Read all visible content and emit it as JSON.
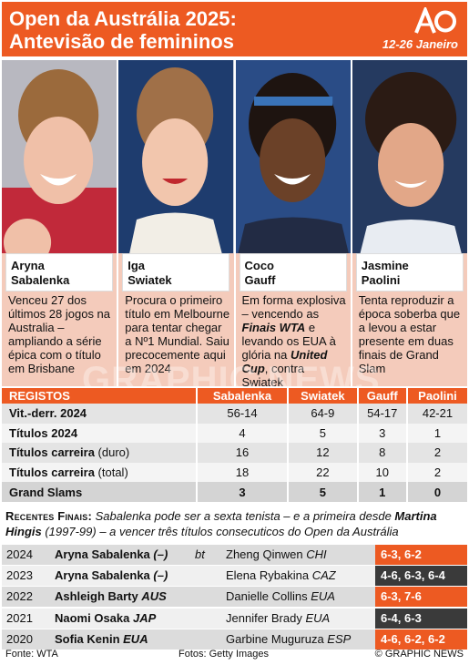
{
  "header": {
    "title_line1": "Open da Austrália 2025:",
    "title_line2": "Antevisão de femininos",
    "dates": "12-26 Janeiro",
    "logo_text": "AO"
  },
  "players": [
    {
      "first": "Aryna",
      "last": "Sabalenka",
      "desc": "Venceu 27 dos últimos 28 jogos na Australia – ampliando a série épica com o título em Brisbane",
      "photo_bg": "#c1293a",
      "skin": "#f0c0a8",
      "hair": "#9b6a3c"
    },
    {
      "first": "Iga",
      "last": "Swiatek",
      "desc": "Procura o primeiro título em Melbourne para tentar chegar a Nº1 Mundial. Saiu precocemente aqui em 2024",
      "photo_bg": "#1e3c6e",
      "skin": "#f2c6ad",
      "hair": "#a07048"
    },
    {
      "first": "Coco",
      "last": "Gauff",
      "desc_parts": [
        "Em forma explosiva – vencendo as ",
        "Finais WTA",
        " e levando os EUA à glória na ",
        "United Cup",
        ", contra Swiatek"
      ],
      "photo_bg": "#2a4c86",
      "skin": "#6b4128",
      "hair": "#1e1410"
    },
    {
      "first": "Jasmine",
      "last": "Paolini",
      "desc": "Tenta reproduzir a época soberba que a levou a estar presente em duas finais de Grand Slam",
      "photo_bg": "#253a60",
      "skin": "#e2a788",
      "hair": "#2b1b14"
    }
  ],
  "stats": {
    "headers": [
      "REGISTOS",
      "Sabalenka",
      "Swiatek",
      "Gauff",
      "Paolini"
    ],
    "rows": [
      {
        "label": "Vit.-derr. 2024",
        "note": "",
        "values": [
          "56-14",
          "64-9",
          "54-17",
          "42-21"
        ]
      },
      {
        "label": "Títulos 2024",
        "note": "",
        "values": [
          "4",
          "5",
          "3",
          "1"
        ]
      },
      {
        "label": "Títulos carreira",
        "note": " (duro)",
        "values": [
          "16",
          "12",
          "8",
          "2"
        ]
      },
      {
        "label": "Títulos carreira",
        "note": " (total)",
        "values": [
          "18",
          "22",
          "10",
          "2"
        ]
      },
      {
        "label": "Grand Slams",
        "note": "",
        "values": [
          "3",
          "5",
          "1",
          "0"
        ]
      }
    ]
  },
  "recent_finals": {
    "label": "Recentes Finais:",
    "note_part1": " Sabalenka pode ser a sexta tenista – e a primeira desde ",
    "note_name": "Martina Hingis",
    "note_part2": " (1997-99) – a vencer três títulos consecuticos do Open da Austrália",
    "bt": "bt",
    "rows": [
      {
        "year": "2024",
        "winner": "Aryna Sabalenka",
        "winner_ctry": "(–)",
        "runner": "Zheng Qinwen",
        "runner_ctry": "CHI",
        "score": "6-3, 6-2",
        "score_color": "#ed5a22"
      },
      {
        "year": "2023",
        "winner": "Aryna Sabalenka",
        "winner_ctry": "(–)",
        "runner": "Elena Rybakina",
        "runner_ctry": "CAZ",
        "score": "4-6, 6-3, 6-4",
        "score_color": "#3a3a3a"
      },
      {
        "year": "2022",
        "winner": "Ashleigh Barty",
        "winner_ctry": "AUS",
        "runner": "Danielle Collins",
        "runner_ctry": "EUA",
        "score": "6-3, 7-6",
        "score_color": "#ed5a22"
      },
      {
        "year": "2021",
        "winner": "Naomi Osaka",
        "winner_ctry": "JAP",
        "runner": "Jennifer Brady",
        "runner_ctry": "EUA",
        "score": "6-4, 6-3",
        "score_color": "#3a3a3a"
      },
      {
        "year": "2020",
        "winner": "Sofia Kenin",
        "winner_ctry": "EUA",
        "runner": "Garbine Muguruza",
        "runner_ctry": "ESP",
        "score": "4-6, 6-2, 6-2",
        "score_color": "#ed5a22"
      }
    ]
  },
  "footer": {
    "source": "Fonte: WTA",
    "photos": "Fotos: Getty Images",
    "credit": "© GRAPHIC NEWS"
  },
  "colors": {
    "accent": "#ed5a22",
    "panel": "#f4cbbb"
  }
}
